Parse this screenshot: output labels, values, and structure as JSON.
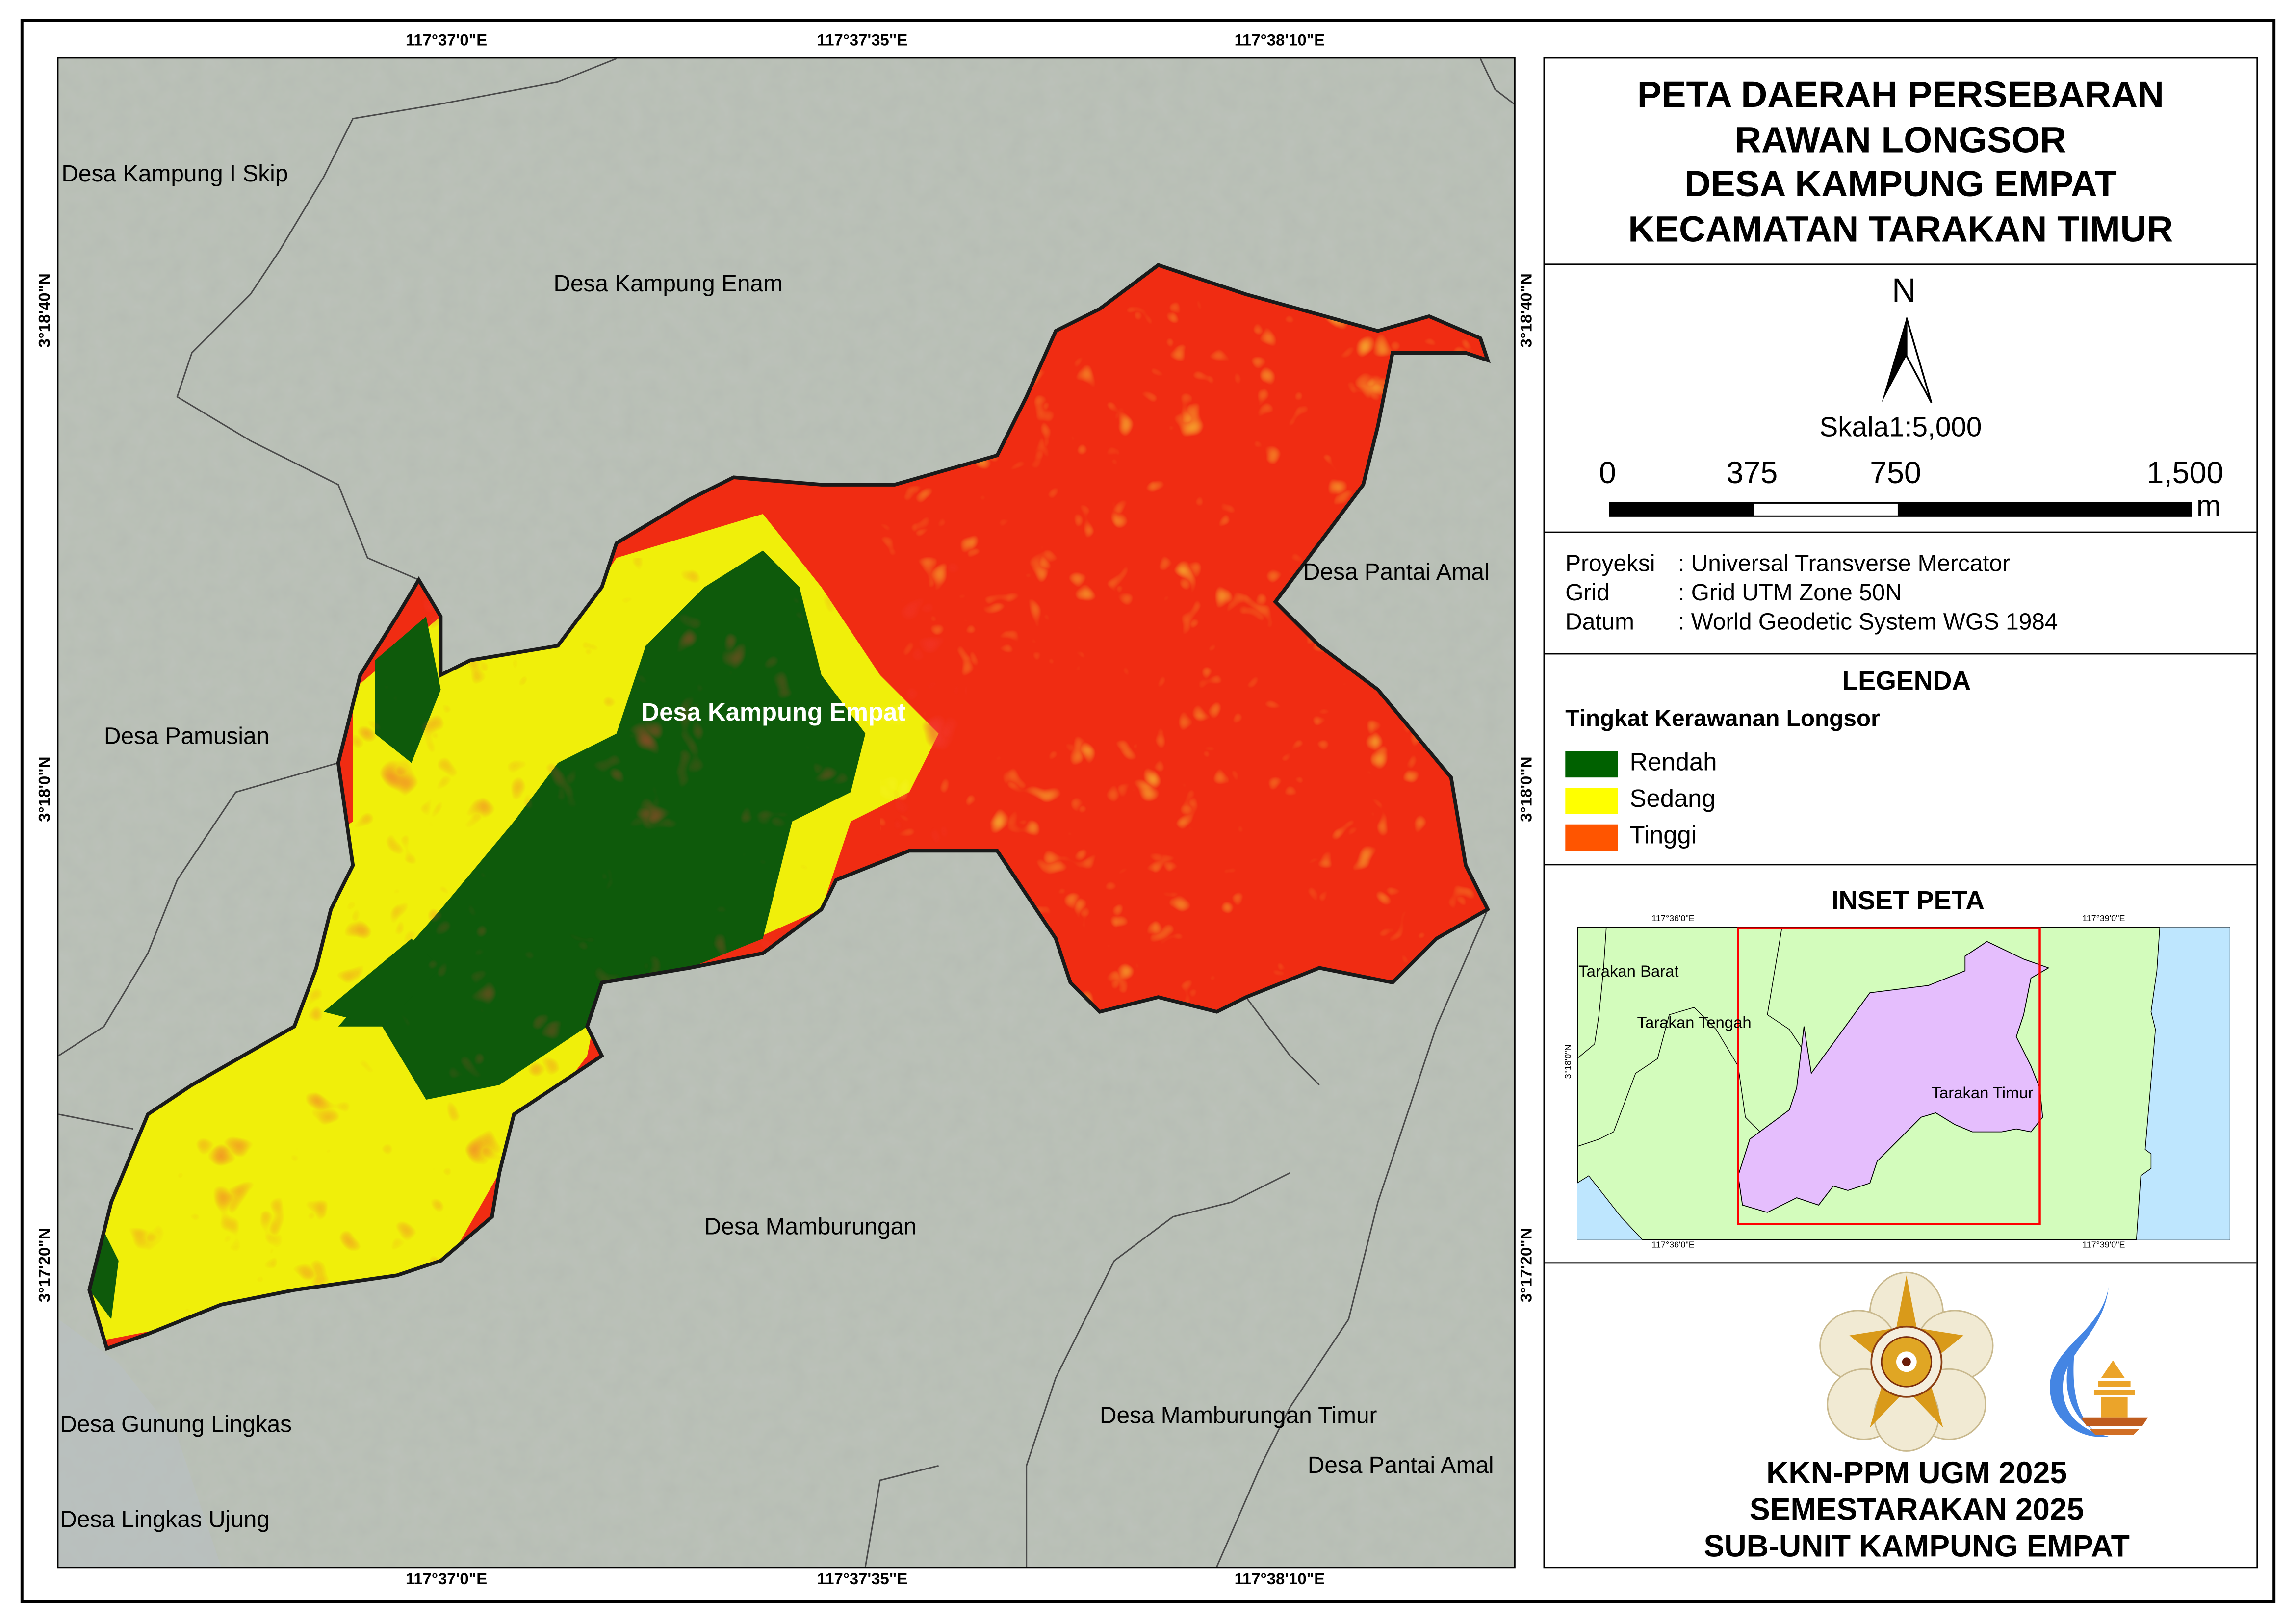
{
  "title_lines": [
    "PETA DAERAH PERSEBARAN",
    "RAWAN LONGSOR",
    "DESA KAMPUNG EMPAT",
    "KECAMATAN TARAKAN TIMUR"
  ],
  "north_label": "N",
  "scale": {
    "text": "Skala1:5,000",
    "ticks": [
      "0",
      "375",
      "750",
      "1,500"
    ],
    "unit": "m"
  },
  "projection": [
    {
      "key": "Proyeksi",
      "value": ": Universal Transverse Mercator"
    },
    {
      "key": "Grid",
      "value": ": Grid UTM Zone 50N"
    },
    {
      "key": "Datum",
      "value": ": World Geodetic System WGS 1984"
    }
  ],
  "legend": {
    "title": "LEGENDA",
    "subtitle": "Tingkat Kerawanan Longsor",
    "items": [
      {
        "label": "Rendah",
        "color": "#006100"
      },
      {
        "label": "Sedang",
        "color": "#ffff00"
      },
      {
        "label": "Tinggi",
        "color": "#ff5500"
      }
    ]
  },
  "map_fill_colors": {
    "rendah": "#0e5a0b",
    "sedang": "#f0ef0a",
    "tinggi": "#f02c12"
  },
  "map": {
    "top_coords": [
      "117°37'0\"E",
      "117°37'35\"E",
      "117°38'10\"E"
    ],
    "side_coords": [
      "3°18'40\"N",
      "3°18'0\"N",
      "3°17'20\"N"
    ],
    "labels": {
      "kampung_i_skip": "Desa Kampung I Skip",
      "kampung_enam": "Desa Kampung Enam",
      "pantai_amal_1": "Desa Pantai Amal",
      "pamusian": "Desa Pamusian",
      "kampung_empat": "Desa Kampung Empat",
      "mamburungan": "Desa Mamburungan",
      "gunung_lingkas": "Desa Gunung Lingkas",
      "lingkas_ujung": "Desa Lingkas Ujung",
      "mamburungan_timur": "Desa Mamburungan Timur",
      "pantai_amal_2": "Desa Pantai Amal"
    }
  },
  "inset": {
    "title": "INSET PETA",
    "top_coords": [
      "117°36'0\"E",
      "117°39'0\"E"
    ],
    "side_coord": "3°18'0\"N",
    "labels": {
      "barat": "Tarakan Barat",
      "tengah": "Tarakan Tengah",
      "timur": "Tarakan Timur"
    },
    "colors": {
      "land": "#d3fcbc",
      "sea": "#bee6fe",
      "highlight": "#e5befd",
      "extent": "#ff0000"
    }
  },
  "footer_lines": [
    "KKN-PPM UGM 2025",
    "SEMESTARAKAN 2025",
    "SUB-UNIT KAMPUNG EMPAT"
  ],
  "logos": {
    "ugm": "UNIVERSITAS GADJAH MADA JOGJAKARTA"
  }
}
